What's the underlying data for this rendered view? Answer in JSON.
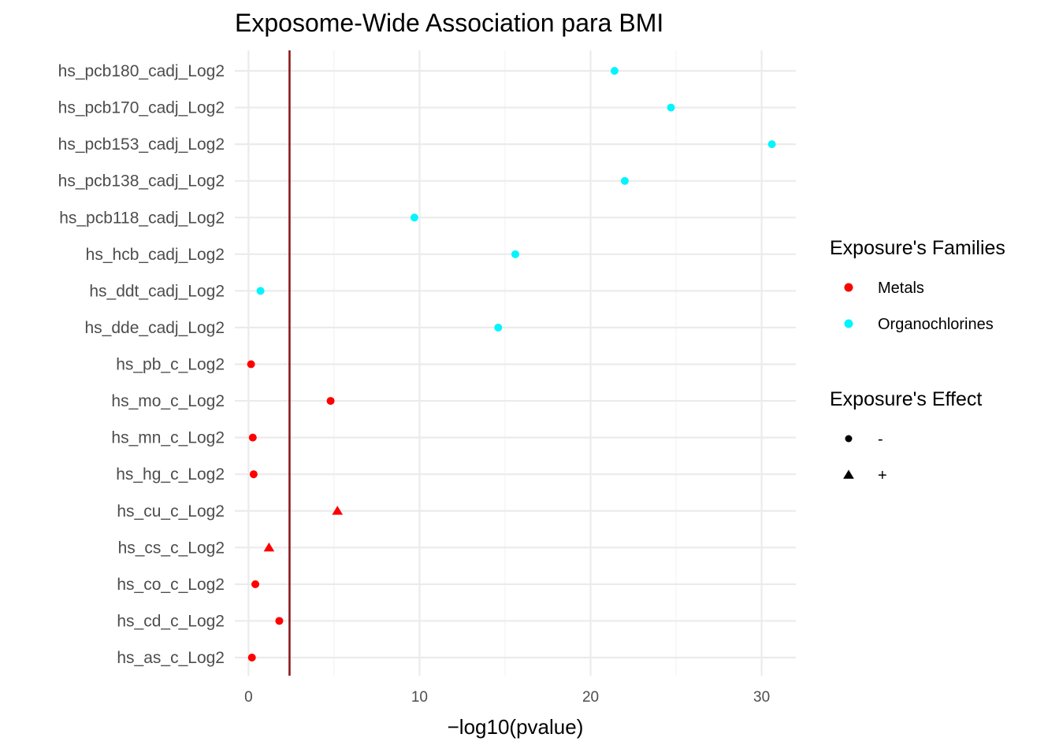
{
  "chart_data": {
    "type": "scatter",
    "title": "Exposome-Wide Association para BMI",
    "xlabel": "−log10(pvalue)",
    "ylabel": "",
    "xlim": [
      -0.8,
      32
    ],
    "xticks": [
      0,
      10,
      20,
      30
    ],
    "threshold": 2.4,
    "threshold_color": "#8b1a1a",
    "grid": true,
    "legend_position": "right",
    "categories": [
      "hs_as_c_Log2",
      "hs_cd_c_Log2",
      "hs_co_c_Log2",
      "hs_cs_c_Log2",
      "hs_cu_c_Log2",
      "hs_hg_c_Log2",
      "hs_mn_c_Log2",
      "hs_mo_c_Log2",
      "hs_pb_c_Log2",
      "hs_dde_cadj_Log2",
      "hs_ddt_cadj_Log2",
      "hs_hcb_cadj_Log2",
      "hs_pcb118_cadj_Log2",
      "hs_pcb138_cadj_Log2",
      "hs_pcb153_cadj_Log2",
      "hs_pcb170_cadj_Log2",
      "hs_pcb180_cadj_Log2"
    ],
    "points": [
      {
        "label": "hs_as_c_Log2",
        "x": 0.2,
        "family": "Metals",
        "effect": "-"
      },
      {
        "label": "hs_cd_c_Log2",
        "x": 1.8,
        "family": "Metals",
        "effect": "-"
      },
      {
        "label": "hs_co_c_Log2",
        "x": 0.4,
        "family": "Metals",
        "effect": "-"
      },
      {
        "label": "hs_cs_c_Log2",
        "x": 1.2,
        "family": "Metals",
        "effect": "+"
      },
      {
        "label": "hs_cu_c_Log2",
        "x": 5.2,
        "family": "Metals",
        "effect": "+"
      },
      {
        "label": "hs_hg_c_Log2",
        "x": 0.3,
        "family": "Metals",
        "effect": "-"
      },
      {
        "label": "hs_mn_c_Log2",
        "x": 0.25,
        "family": "Metals",
        "effect": "-"
      },
      {
        "label": "hs_mo_c_Log2",
        "x": 4.8,
        "family": "Metals",
        "effect": "-"
      },
      {
        "label": "hs_pb_c_Log2",
        "x": 0.15,
        "family": "Metals",
        "effect": "-"
      },
      {
        "label": "hs_dde_cadj_Log2",
        "x": 14.6,
        "family": "Organochlorines",
        "effect": "-"
      },
      {
        "label": "hs_ddt_cadj_Log2",
        "x": 0.7,
        "family": "Organochlorines",
        "effect": "-"
      },
      {
        "label": "hs_hcb_cadj_Log2",
        "x": 15.6,
        "family": "Organochlorines",
        "effect": "-"
      },
      {
        "label": "hs_pcb118_cadj_Log2",
        "x": 9.7,
        "family": "Organochlorines",
        "effect": "-"
      },
      {
        "label": "hs_pcb138_cadj_Log2",
        "x": 22.0,
        "family": "Organochlorines",
        "effect": "-"
      },
      {
        "label": "hs_pcb153_cadj_Log2",
        "x": 30.6,
        "family": "Organochlorines",
        "effect": "-"
      },
      {
        "label": "hs_pcb170_cadj_Log2",
        "x": 24.7,
        "family": "Organochlorines",
        "effect": "-"
      },
      {
        "label": "hs_pcb180_cadj_Log2",
        "x": 21.4,
        "family": "Organochlorines",
        "effect": "-"
      }
    ],
    "legend": {
      "families": {
        "title": "Exposure's Families",
        "items": [
          {
            "label": "Metals",
            "color": "#ff0000"
          },
          {
            "label": "Organochlorines",
            "color": "#00f5ff"
          }
        ]
      },
      "effects": {
        "title": "Exposure's Effect",
        "items": [
          {
            "label": "-",
            "shape": "circle"
          },
          {
            "label": "+",
            "shape": "triangle"
          }
        ]
      }
    }
  }
}
